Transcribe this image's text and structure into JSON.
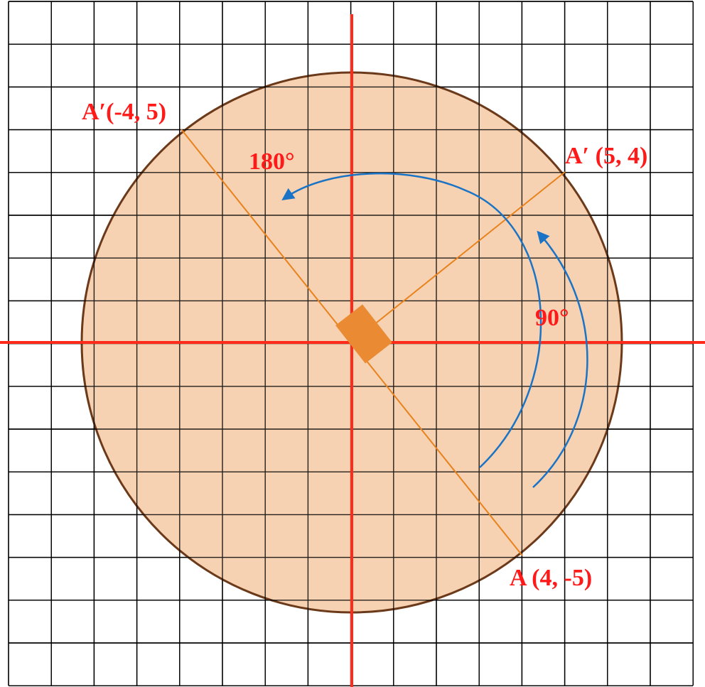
{
  "labels": {
    "original_point": "A (4, -5)",
    "image_90": "A′ (5, 4)",
    "image_180": "A′(-4, 5)",
    "angle_90": "90°",
    "angle_180": "180°"
  },
  "colors": {
    "disc_fill": "#f7d2b2",
    "disc_stroke": "#6b3a1a",
    "axis": "#ff2a1a",
    "ray": "#e8821e",
    "center_marker": "#ea8a32",
    "arc": "#1a73c4",
    "label": "#ff1a1a"
  },
  "icons": {
    "arrowhead": "arrowhead-icon"
  }
}
